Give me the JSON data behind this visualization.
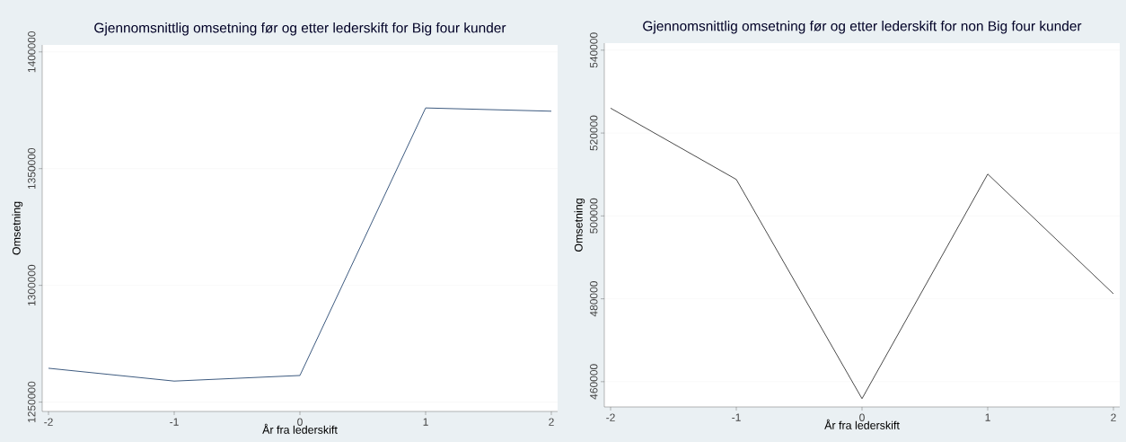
{
  "chart_data": [
    {
      "type": "line",
      "title": "Gjennomsnittlig omsetning før og etter lederskift for Big four kunder",
      "xlabel": "År fra lederskift",
      "ylabel": "Omsetning",
      "x": [
        -2,
        -1,
        0,
        1,
        2
      ],
      "series": [
        {
          "color": "#3d5a80",
          "values": [
            1264500,
            1259000,
            1261400,
            1376000,
            1374600
          ]
        }
      ],
      "xlim": [
        -2.05,
        2.05
      ],
      "xticks": [
        -2,
        -1,
        0,
        1,
        2
      ],
      "ylim": [
        1246000,
        1403000
      ],
      "yticks": [
        1250000,
        1300000,
        1350000,
        1400000
      ],
      "grid": "y",
      "marker": "none",
      "line_style": "solid"
    },
    {
      "type": "line",
      "title": "Gjennomsnittlig omsetning før og etter lederskift for non Big four kunder",
      "xlabel": "År fra lederskift",
      "ylabel": "Omsetning",
      "x": [
        -2,
        -1,
        0,
        1,
        2
      ],
      "series": [
        {
          "color": "#4a4a4a",
          "values": [
            526000,
            508800,
            455900,
            510100,
            481200
          ]
        }
      ],
      "xlim": [
        -2.05,
        2.05
      ],
      "xticks": [
        -2,
        -1,
        0,
        1,
        2
      ],
      "ylim": [
        453900,
        541700
      ],
      "yticks": [
        460000,
        480000,
        500000,
        520000,
        540000
      ],
      "grid": "y",
      "marker": "none",
      "line_style": "solid"
    }
  ]
}
